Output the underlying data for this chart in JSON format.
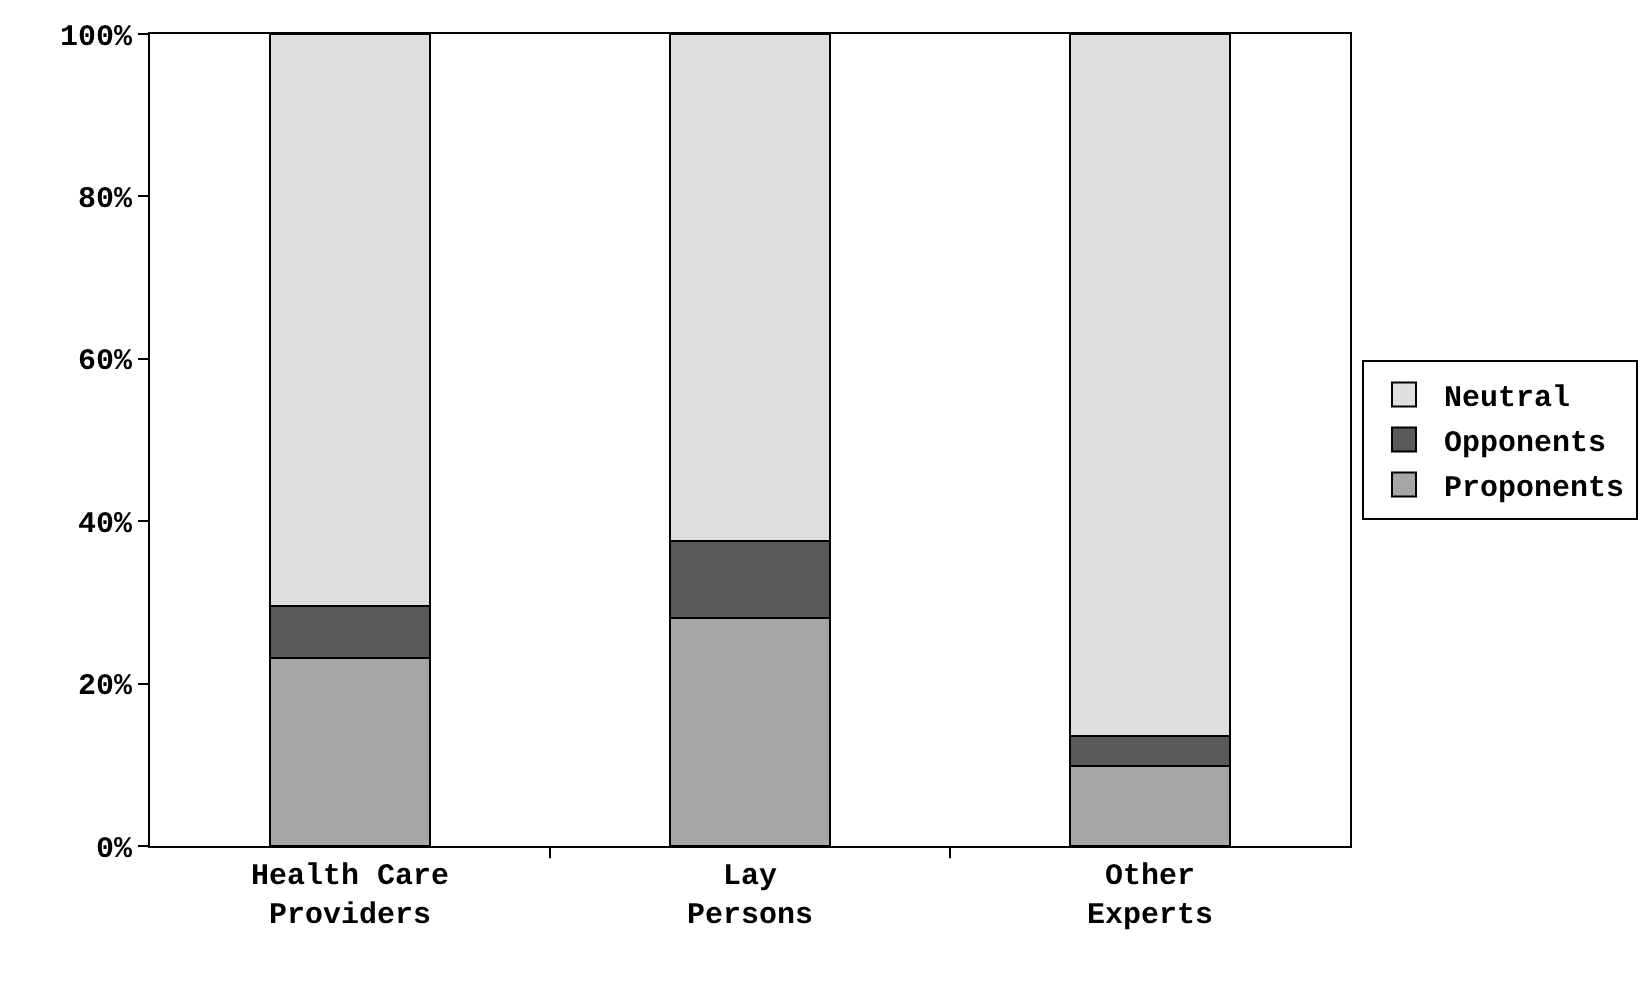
{
  "chart_data": {
    "type": "bar",
    "stacked": true,
    "categories": [
      "Health Care Providers",
      "Lay Persons",
      "Other Experts"
    ],
    "series": [
      {
        "name": "Proponents",
        "color": "#a6a6a6",
        "values": [
          23.2,
          28.1,
          9.8
        ]
      },
      {
        "name": "Opponents",
        "color": "#595959",
        "values": [
          6.4,
          9.5,
          3.7
        ]
      },
      {
        "name": "Neutral",
        "color": "#dedede",
        "values": [
          70.4,
          62.4,
          86.5
        ]
      }
    ],
    "ylim": [
      0,
      100
    ],
    "yticks": [
      {
        "value": 0,
        "label": "0%"
      },
      {
        "value": 20,
        "label": "20%"
      },
      {
        "value": 40,
        "label": "40%"
      },
      {
        "value": 60,
        "label": "60%"
      },
      {
        "value": 80,
        "label": "80%"
      },
      {
        "value": 100,
        "label": "100%"
      }
    ],
    "grid": false,
    "legend": "right"
  }
}
